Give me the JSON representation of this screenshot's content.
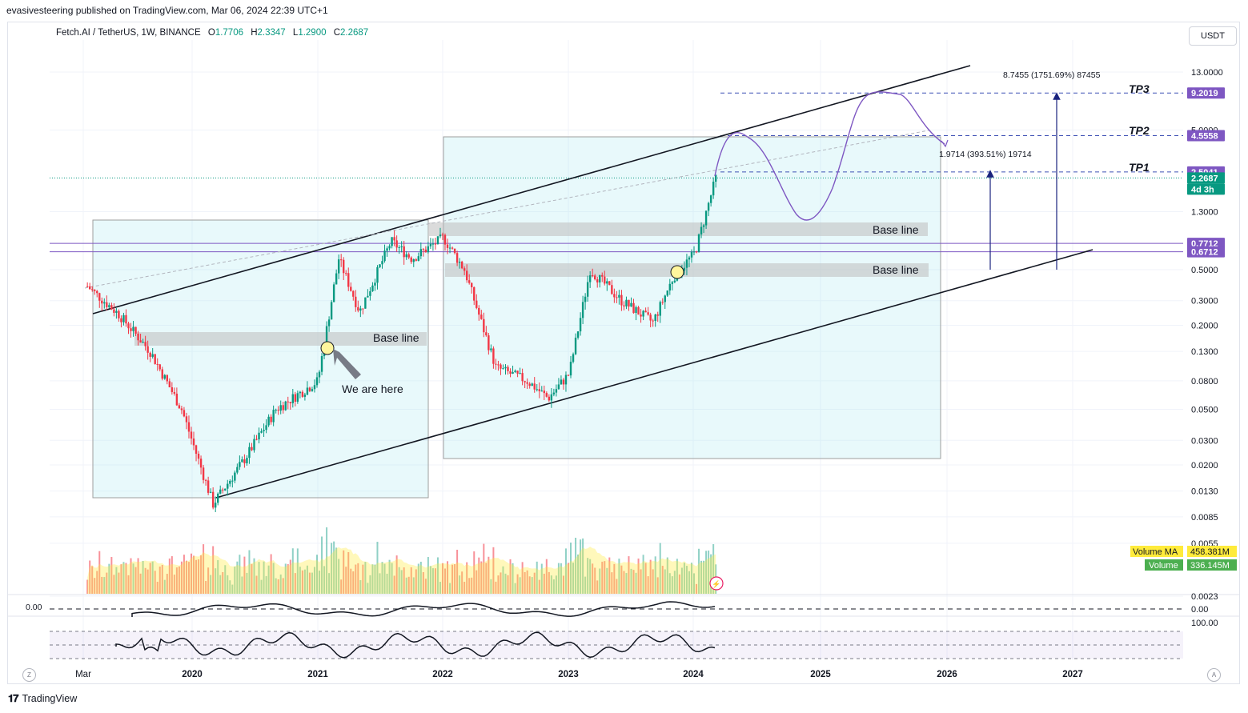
{
  "header": {
    "published_by": "evasivesteering published on TradingView.com, Mar 06, 2024 22:39 UTC+1",
    "symbol": "Fetch.AI / TetherUS, 1W, BINANCE",
    "ohlc": [
      {
        "key": "O",
        "value": "1.7706"
      },
      {
        "key": "H",
        "value": "2.3347"
      },
      {
        "key": "L",
        "value": "1.2900"
      },
      {
        "key": "C",
        "value": "2.2687"
      }
    ],
    "currency": "USDT"
  },
  "price_axis": {
    "labels": [
      "13.0000",
      "5.0000",
      "1.3000",
      "0.5000",
      "0.3000",
      "0.2000",
      "0.1300",
      "0.0800",
      "0.0500",
      "0.0300",
      "0.0200",
      "0.0130",
      "0.0085",
      "0.0055",
      "0.0023"
    ]
  },
  "badges": [
    {
      "name": "tp3-price-badge",
      "text": "9.2019",
      "color": "#7e57c2"
    },
    {
      "name": "tp2-price-badge",
      "text": "4.5558",
      "color": "#7e57c2"
    },
    {
      "name": "tp1-price-badge",
      "text": "2.5041",
      "color": "#7e57c2"
    },
    {
      "name": "last-price-badge",
      "text": "2.2687",
      "color": "#089981"
    },
    {
      "name": "countdown-badge",
      "text": "4d 3h",
      "color": "#089981"
    },
    {
      "name": "resistance-upper-badge",
      "text": "0.7712",
      "color": "#7e57c2"
    },
    {
      "name": "resistance-lower-badge",
      "text": "0.6712",
      "color": "#7e57c2"
    }
  ],
  "volume_legend": {
    "ma_label": "Volume MA",
    "ma_value": "458.381M",
    "vol_label": "Volume",
    "vol_value": "336.145M"
  },
  "oscillator1": {
    "left_label": "0.00",
    "right_label": "0.00"
  },
  "oscillator2": {
    "right_label": "100.00"
  },
  "time_axis": {
    "labels": [
      "Mar",
      "2020",
      "2021",
      "2022",
      "2023",
      "2024",
      "2025",
      "2026",
      "2027"
    ],
    "left_button": "Z",
    "right_button": "A"
  },
  "annotations": {
    "tp1": "TP1",
    "tp2": "TP2",
    "tp3": "TP3",
    "baseline_1": "Base line",
    "baseline_2": "Base line",
    "baseline_3": "Base line",
    "we_are_here": "We are here",
    "measure_small": "1.9714 (393.51%) 19714",
    "measure_large": "8.7455 (1751.69%) 87455"
  },
  "footer": {
    "brand": "TradingView"
  },
  "chart_data": {
    "type": "line",
    "title": "Fetch.AI / TetherUS, 1W, BINANCE",
    "scale": "log",
    "ylim": [
      0.0023,
      25
    ],
    "x": [
      "2019-03",
      "2019-06",
      "2019-09",
      "2019-12",
      "2020-03",
      "2020-06",
      "2020-09",
      "2021-01",
      "2021-03",
      "2021-05",
      "2021-08",
      "2021-10",
      "2022-01",
      "2022-03",
      "2022-06",
      "2022-09",
      "2022-11",
      "2023-01",
      "2023-03",
      "2023-06",
      "2023-09",
      "2023-11",
      "2024-01",
      "2024-03"
    ],
    "series": [
      {
        "values": [
          0.38,
          0.24,
          0.13,
          0.05,
          0.0105,
          0.022,
          0.05,
          0.08,
          0.6,
          0.25,
          0.8,
          0.6,
          0.85,
          0.5,
          0.1,
          0.08,
          0.06,
          0.09,
          0.5,
          0.3,
          0.21,
          0.45,
          0.66,
          2.2687
        ]
      }
    ],
    "horizontal_levels": [
      9.2019,
      4.5558,
      2.5041,
      0.7712,
      0.6712
    ],
    "targets": {
      "TP1": 2.5041,
      "TP2": 4.5558,
      "TP3": 9.2019
    },
    "grid": true
  }
}
